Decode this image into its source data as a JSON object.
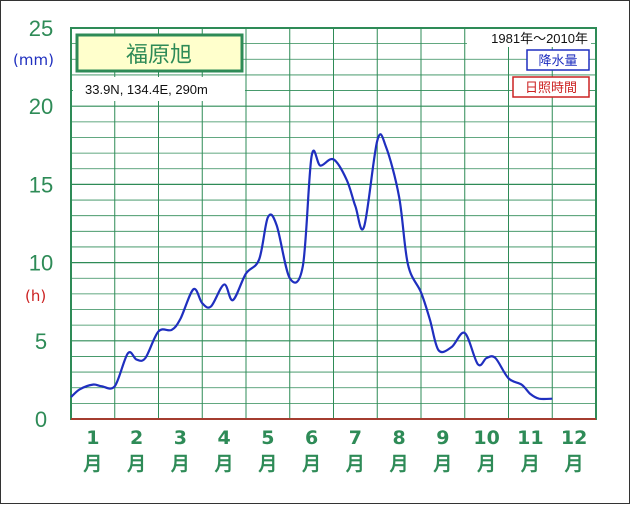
{
  "chart_data": {
    "type": "line",
    "station_name": "福原旭",
    "location": "33.9N,  134.4E,  290m",
    "period": "1981年〜2010年",
    "y_unit_precip": "(mm)",
    "y_unit_sun": "(h)",
    "legend": [
      "降水量",
      "日照時間"
    ],
    "y_ticks": [
      "0",
      "5",
      "10",
      "15",
      "20",
      "25"
    ],
    "ylim": [
      0,
      25
    ],
    "x_labels": [
      {
        "num": "1",
        "unit": "月"
      },
      {
        "num": "2",
        "unit": "月"
      },
      {
        "num": "3",
        "unit": "月"
      },
      {
        "num": "4",
        "unit": "月"
      },
      {
        "num": "5",
        "unit": "月"
      },
      {
        "num": "6",
        "unit": "月"
      },
      {
        "num": "7",
        "unit": "月"
      },
      {
        "num": "8",
        "unit": "月"
      },
      {
        "num": "9",
        "unit": "月"
      },
      {
        "num": "10",
        "unit": "月"
      },
      {
        "num": "11",
        "unit": "月"
      },
      {
        "num": "12",
        "unit": "月"
      }
    ],
    "x_range": [
      0.5,
      12.5
    ],
    "grid": true,
    "series": [
      {
        "name": "降水量",
        "color": "#1f2fbf",
        "points": [
          [
            0.5,
            1.4
          ],
          [
            0.7,
            1.9
          ],
          [
            1.0,
            2.2
          ],
          [
            1.2,
            2.1
          ],
          [
            1.5,
            2.1
          ],
          [
            1.8,
            4.2
          ],
          [
            2.0,
            3.8
          ],
          [
            2.2,
            3.9
          ],
          [
            2.5,
            5.6
          ],
          [
            2.8,
            5.7
          ],
          [
            3.0,
            6.4
          ],
          [
            3.3,
            8.3
          ],
          [
            3.5,
            7.4
          ],
          [
            3.7,
            7.2
          ],
          [
            4.0,
            8.6
          ],
          [
            4.2,
            7.6
          ],
          [
            4.5,
            9.3
          ],
          [
            4.8,
            10.2
          ],
          [
            5.0,
            12.9
          ],
          [
            5.2,
            12.4
          ],
          [
            5.5,
            9.0
          ],
          [
            5.8,
            9.8
          ],
          [
            6.0,
            16.8
          ],
          [
            6.2,
            16.2
          ],
          [
            6.5,
            16.6
          ],
          [
            6.8,
            15.3
          ],
          [
            7.0,
            13.6
          ],
          [
            7.2,
            12.3
          ],
          [
            7.5,
            17.8
          ],
          [
            7.7,
            17.4
          ],
          [
            8.0,
            14.2
          ],
          [
            8.2,
            9.9
          ],
          [
            8.5,
            8.1
          ],
          [
            8.7,
            6.4
          ],
          [
            8.9,
            4.4
          ],
          [
            9.2,
            4.6
          ],
          [
            9.5,
            5.5
          ],
          [
            9.8,
            3.5
          ],
          [
            10.0,
            3.9
          ],
          [
            10.2,
            3.9
          ],
          [
            10.5,
            2.6
          ],
          [
            10.8,
            2.2
          ],
          [
            11.0,
            1.6
          ],
          [
            11.2,
            1.3
          ],
          [
            11.5,
            1.3
          ]
        ]
      },
      {
        "name": "日照時間",
        "color": "#cc2222",
        "points": []
      }
    ]
  }
}
